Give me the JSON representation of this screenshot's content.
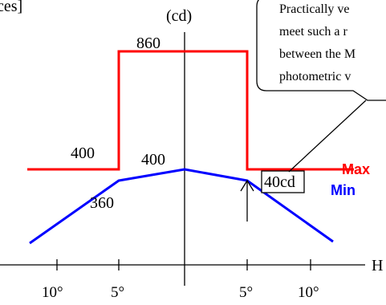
{
  "diagram": {
    "corner_fragment": "ces]",
    "unit_label": "(cd)",
    "max_label": "Max",
    "min_label": "Min",
    "h_axis_label": "H",
    "tick_labels": [
      "10°",
      "5°",
      "5°",
      "10°"
    ],
    "value_labels": {
      "max_center": "860",
      "max_outer": "400",
      "min_center": "400",
      "min_shoulder": "360"
    },
    "boxed_label": "40cd",
    "callout_lines": [
      "Practically ve",
      "meet such a r",
      "between the M",
      "photometric v"
    ],
    "colors": {
      "max": "#ff0000",
      "min": "#0000ff",
      "axis": "#000000"
    }
  }
}
